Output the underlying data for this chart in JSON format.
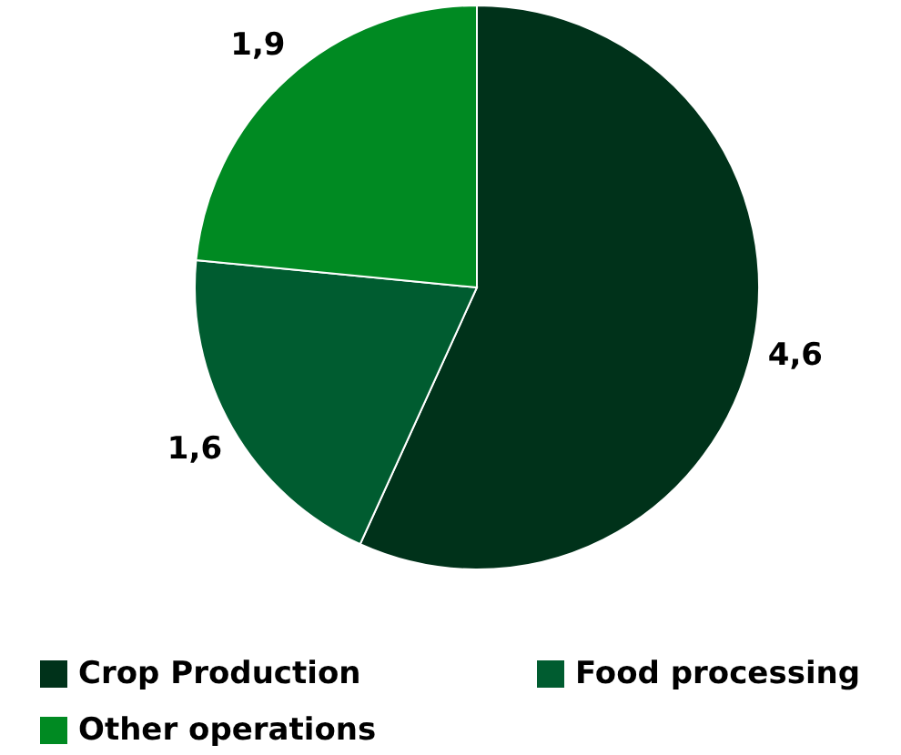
{
  "chart_data": {
    "type": "pie",
    "categories": [
      "Crop Production",
      "Food processing",
      "Other operations"
    ],
    "values": [
      4.6,
      1.6,
      1.9
    ],
    "value_labels": [
      "4,6",
      "1,6",
      "1,9"
    ],
    "colors": [
      "#00321a",
      "#005c30",
      "#008a22"
    ],
    "legend": "bottom"
  }
}
